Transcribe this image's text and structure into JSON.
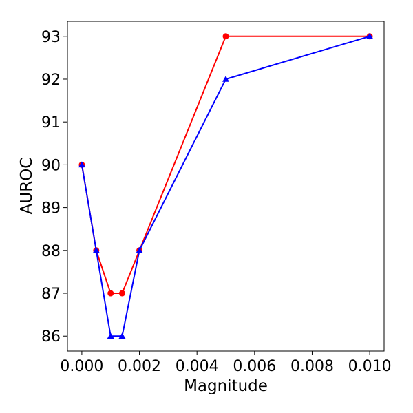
{
  "chart_data": {
    "type": "line",
    "title": "",
    "xlabel": "Magnitude",
    "ylabel": "AUROC",
    "xlim": [
      -0.0005,
      0.0105
    ],
    "ylim": [
      85.65,
      93.35
    ],
    "grid": false,
    "legend": "none",
    "x_ticks": [
      0.0,
      0.002,
      0.004,
      0.006,
      0.008,
      0.01
    ],
    "x_tick_labels": [
      "0.000",
      "0.002",
      "0.004",
      "0.006",
      "0.008",
      "0.010"
    ],
    "y_ticks": [
      86,
      87,
      88,
      89,
      90,
      91,
      92,
      93
    ],
    "y_tick_labels": [
      "86",
      "87",
      "88",
      "89",
      "90",
      "91",
      "92",
      "93"
    ],
    "series": [
      {
        "color": "#ff0000",
        "marker": "circle",
        "x": [
          0.0,
          0.0005,
          0.001,
          0.0014,
          0.002,
          0.005,
          0.01
        ],
        "y": [
          90,
          88,
          87,
          87,
          88,
          93,
          93
        ]
      },
      {
        "color": "#0000ff",
        "marker": "triangle",
        "x": [
          0.0,
          0.0005,
          0.001,
          0.0014,
          0.002,
          0.005,
          0.01
        ],
        "y": [
          90,
          88,
          86,
          86,
          88,
          92,
          93
        ]
      }
    ]
  }
}
